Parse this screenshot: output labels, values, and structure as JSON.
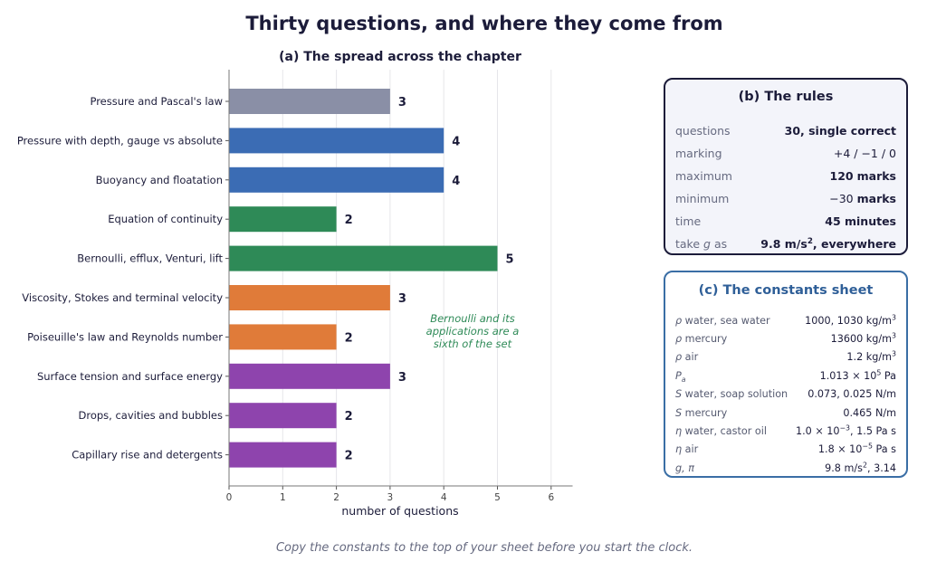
{
  "title": "Thirty questions, and where they come from",
  "footer": "Copy the constants to the top of your sheet before you start the clock.",
  "chart_data": {
    "type": "bar",
    "orientation": "horizontal",
    "title": "(a) The spread across the chapter",
    "xlabel": "number of questions",
    "ylabel": "",
    "xlim": [
      0,
      6.4
    ],
    "xticks": [
      0,
      1,
      2,
      3,
      4,
      5,
      6
    ],
    "grid": "vertical",
    "categories": [
      "Pressure and Pascal's law",
      "Pressure with depth, gauge vs absolute",
      "Buoyancy and floatation",
      "Equation of continuity",
      "Bernoulli, efflux, Venturi, lift",
      "Viscosity, Stokes and terminal velocity",
      "Poiseuille's law and Reynolds number",
      "Surface tension and surface energy",
      "Drops, cavities and bubbles",
      "Capillary rise and detergents"
    ],
    "values": [
      3,
      4,
      4,
      2,
      5,
      3,
      2,
      3,
      2,
      2
    ],
    "colors": [
      "#8a8fa6",
      "#3b6cb4",
      "#3b6cb4",
      "#2e8a57",
      "#2e8a57",
      "#e07b39",
      "#e07b39",
      "#8e44ad",
      "#8e44ad",
      "#8e44ad"
    ],
    "data_labels": [
      "3",
      "4",
      "4",
      "2",
      "5",
      "3",
      "2",
      "3",
      "2",
      "2"
    ],
    "annotation": {
      "lines": [
        "Bernoulli and its",
        "applications are a",
        "sixth of the set"
      ],
      "color": "#2e8a57"
    }
  },
  "rules": {
    "title": "(b) The rules",
    "rows": [
      {
        "key": "questions",
        "val": "30, single correct"
      },
      {
        "key": "marking",
        "val": "+4 / −1 / 0"
      },
      {
        "key": "maximum",
        "val_num": "120",
        "val_unit": "marks"
      },
      {
        "key": "minimum",
        "val_num": "−30",
        "val_unit": "marks"
      },
      {
        "key": "time",
        "val": "45 minutes"
      },
      {
        "key_pre": "take",
        "key_sym": "g",
        "key_post": "as",
        "val_pre": "9.8 m/s",
        "val_sup": "2",
        "val_post": ", everywhere"
      }
    ]
  },
  "constants": {
    "title": "(c) The constants sheet",
    "rows": [
      {
        "sym": "ρ",
        "key": "water,  sea water",
        "val": "1000,  1030 kg/m",
        "sup": "3"
      },
      {
        "sym": "ρ",
        "key": "mercury",
        "val": "13600 kg/m",
        "sup": "3"
      },
      {
        "sym": "ρ",
        "key": "air",
        "val": "1.2 kg/m",
        "sup": "3"
      },
      {
        "sym": "P",
        "sub": "a",
        "val": "1.013 × 10",
        "vsup": "5",
        "vpost": " Pa"
      },
      {
        "sym": "S",
        "key": "water,  soap solution",
        "val": "0.073,  0.025 N/m"
      },
      {
        "sym": "S",
        "key": "mercury",
        "val": "0.465 N/m"
      },
      {
        "sym": "η",
        "key": "water,  castor oil",
        "val": "1.0 × 10",
        "vsup": "−3",
        "vpost": ",  1.5 Pa s"
      },
      {
        "sym": "η",
        "key": "air",
        "val": "1.8 × 10",
        "vsup": "−5",
        "vpost": " Pa s"
      },
      {
        "sym": "g,  π",
        "val": "9.8 m/s",
        "vsup": "2",
        "vpost": ",   3.14"
      }
    ]
  }
}
